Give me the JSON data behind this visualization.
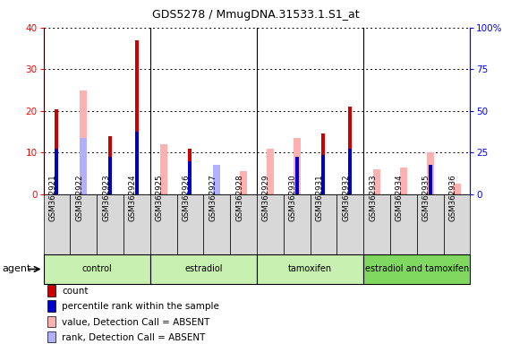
{
  "title": "GDS5278 / MmugDNA.31533.1.S1_at",
  "samples": [
    "GSM362921",
    "GSM362922",
    "GSM362923",
    "GSM362924",
    "GSM362925",
    "GSM362926",
    "GSM362927",
    "GSM362928",
    "GSM362929",
    "GSM362930",
    "GSM362931",
    "GSM362932",
    "GSM362933",
    "GSM362934",
    "GSM362935",
    "GSM362936"
  ],
  "count": [
    20.5,
    0,
    14,
    37,
    0,
    11,
    0,
    0,
    0,
    0,
    14.5,
    21,
    0,
    0,
    0,
    0
  ],
  "percentile_rank": [
    11,
    0,
    9,
    15,
    0,
    8,
    0,
    0,
    0,
    9,
    9.5,
    11,
    0,
    0,
    7,
    0
  ],
  "absent_value": [
    0,
    25,
    0,
    0,
    12,
    0,
    7,
    5.5,
    11,
    13.5,
    0,
    0,
    6,
    6.5,
    10,
    2.5
  ],
  "absent_rank": [
    0,
    13.5,
    0,
    0,
    0,
    0,
    7,
    0,
    0,
    0,
    0,
    0,
    0,
    0,
    0,
    0
  ],
  "groups": [
    {
      "label": "control",
      "start": 0,
      "end": 3,
      "color": "#c8f0b0"
    },
    {
      "label": "estradiol",
      "start": 4,
      "end": 7,
      "color": "#c8f0b0"
    },
    {
      "label": "tamoxifen",
      "start": 8,
      "end": 11,
      "color": "#c8f0b0"
    },
    {
      "label": "estradiol and tamoxifen",
      "start": 12,
      "end": 15,
      "color": "#80d860"
    }
  ],
  "ylim_left": [
    0,
    40
  ],
  "ylim_right": [
    0,
    100
  ],
  "yticks_left": [
    0,
    10,
    20,
    30,
    40
  ],
  "yticks_right": [
    0,
    25,
    50,
    75,
    100
  ],
  "yticklabels_right": [
    "0",
    "25",
    "50",
    "75",
    "100%"
  ],
  "color_count": "#cc0000",
  "color_rank": "#0000cc",
  "color_absent_value": "#ffb0b0",
  "color_absent_rank": "#b0b0ff",
  "legend_items": [
    {
      "label": "count",
      "color": "#cc0000"
    },
    {
      "label": "percentile rank within the sample",
      "color": "#0000cc"
    },
    {
      "label": "value, Detection Call = ABSENT",
      "color": "#ffb0b0"
    },
    {
      "label": "rank, Detection Call = ABSENT",
      "color": "#b0b0ff"
    }
  ],
  "agent_label": "agent",
  "bar_width": 0.25,
  "xticklabel_bg": "#d8d8d8"
}
